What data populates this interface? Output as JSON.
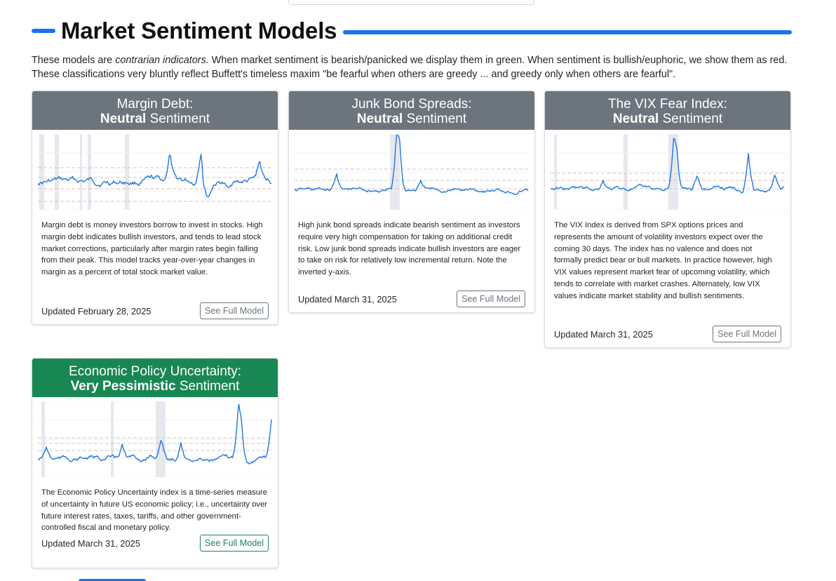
{
  "heading": {
    "title": "Market Sentiment Models"
  },
  "intro": {
    "part1": "These models are ",
    "em": "contrarian indicators.",
    "part2": " When market sentiment is bearish/panicked we display them in green. When sentiment is bullish/euphoric, we show them as red. These classifications very bluntly reflect Buffett's timeless maxim \"be fearful when others are greedy ... and greedy only when others are fearful\"."
  },
  "colors": {
    "accent": "#1a73e8",
    "neutral_header": "#6c757d",
    "pessimistic_header": "#198754",
    "line": "#1f77e0",
    "recession_band": "#e6e8ee"
  },
  "cards": [
    {
      "title": "Margin Debt:",
      "sentiment": "Neutral",
      "sentiment_suffix": " Sentiment",
      "description": "Margin debt is money investors borrow to invest in stocks. High margin debt indicates bullish investors, and tends to lead stock market corrections, particularly after margin rates begin falling from their peak. This model tracks year-over-year changes in margin as a percent of total stock market value.",
      "updated": "Updated February 28, 2025",
      "button": "See Full Model",
      "chart_icon": "line-chart-icon"
    },
    {
      "title": "Junk Bond Spreads:",
      "sentiment": "Neutral",
      "sentiment_suffix": " Sentiment",
      "description": "High junk bond spreads indicate bearish sentiment as investors require very high compensation for taking on additional credit risk. Low junk bond spreads indicate bullish investors are eager to take on risk for relatively low incremental return. Note the inverted y-axis.",
      "updated": "Updated March 31, 2025",
      "button": "See Full Model",
      "chart_icon": "line-chart-icon"
    },
    {
      "title": "The VIX Fear Index:",
      "sentiment": "Neutral",
      "sentiment_suffix": " Sentiment",
      "description": "The VIX Index is derived from SPX options prices and represents the amount of volatility investors expect over the coming 30 days. The index has no valence and does not formally predict bear or bull markets. In practice however, high VIX values represent market fear of upcoming volatility, which tends to correlate with market crashes. Alternately, low VIX values indicate market stability and bullish sentiments.",
      "updated": "Updated March 31, 2025",
      "button": "See Full Model",
      "chart_icon": "line-chart-icon"
    },
    {
      "title": "Economic Policy Uncertainty:",
      "sentiment": "Very Pessimistic",
      "sentiment_suffix": " Sentiment",
      "description": "The Economic Policy Uncertainty index is a time-series measure of uncertainty in future US economic policy; i.e., uncertainty over future interest rates, taxes, tariffs, and other government-controlled fiscal and monetary policy.",
      "updated": "Updated March 31, 2025",
      "button": "See Full Model",
      "chart_icon": "line-chart-icon"
    }
  ]
}
